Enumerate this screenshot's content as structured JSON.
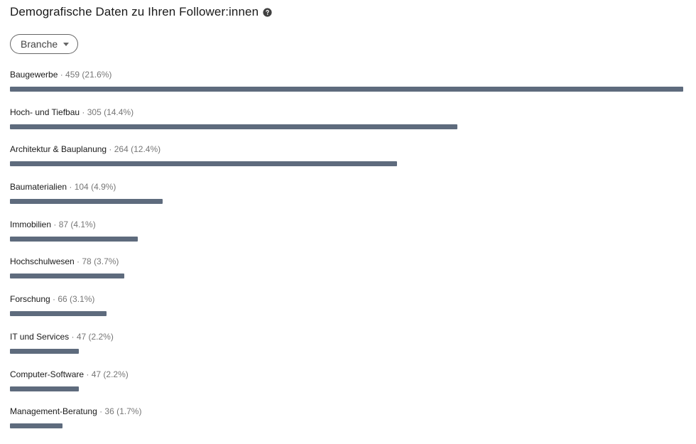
{
  "header": {
    "title": "Demografische Daten zu Ihren Follower:innen",
    "help_icon": "help-circle-icon"
  },
  "filter": {
    "label": "Branche",
    "icon": "caret-down-icon"
  },
  "colors": {
    "bar": "#5e6b7d",
    "muted_text": "#737373"
  },
  "items": [
    {
      "name": "Baugewerbe",
      "stats": " · 459 (21.6%)",
      "count": 459,
      "percent": 21.6
    },
    {
      "name": "Hoch- und Tiefbau",
      "stats": " · 305 (14.4%)",
      "count": 305,
      "percent": 14.4
    },
    {
      "name": "Architektur & Bauplanung",
      "stats": " · 264 (12.4%)",
      "count": 264,
      "percent": 12.4
    },
    {
      "name": "Baumaterialien",
      "stats": " · 104 (4.9%)",
      "count": 104,
      "percent": 4.9
    },
    {
      "name": "Immobilien",
      "stats": " · 87 (4.1%)",
      "count": 87,
      "percent": 4.1
    },
    {
      "name": "Hochschulwesen",
      "stats": " · 78 (3.7%)",
      "count": 78,
      "percent": 3.7
    },
    {
      "name": "Forschung",
      "stats": " · 66 (3.1%)",
      "count": 66,
      "percent": 3.1
    },
    {
      "name": "IT und Services",
      "stats": " · 47 (2.2%)",
      "count": 47,
      "percent": 2.2
    },
    {
      "name": "Computer-Software",
      "stats": " · 47 (2.2%)",
      "count": 47,
      "percent": 2.2
    },
    {
      "name": "Management-Beratung",
      "stats": " · 36 (1.7%)",
      "count": 36,
      "percent": 1.7
    }
  ]
}
